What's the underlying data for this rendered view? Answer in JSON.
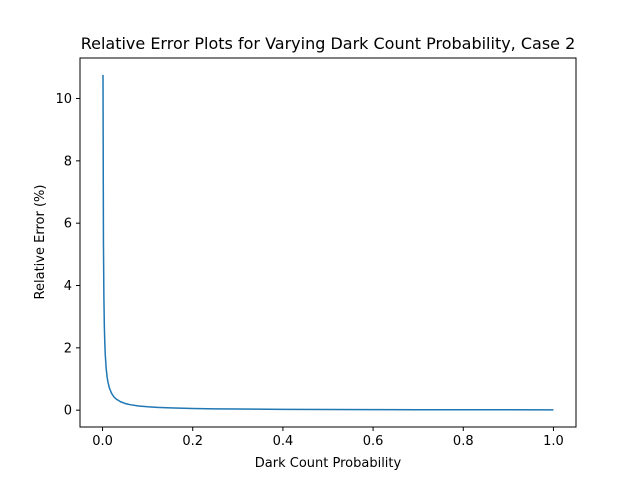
{
  "chart_data": {
    "type": "line",
    "title": "Relative Error Plots for Varying Dark Count Probability, Case 2",
    "xlabel": "Dark Count Probability",
    "ylabel": "Relative Error (%)",
    "xlim": [
      -0.05,
      1.05
    ],
    "ylim": [
      -0.54,
      11.3
    ],
    "x_ticks": [
      0.0,
      0.2,
      0.4,
      0.6,
      0.8,
      1.0
    ],
    "x_tick_labels": [
      "0.0",
      "0.2",
      "0.4",
      "0.6",
      "0.8",
      "1.0"
    ],
    "y_ticks": [
      0,
      2,
      4,
      6,
      8,
      10
    ],
    "y_tick_labels": [
      "0",
      "2",
      "4",
      "6",
      "8",
      "10"
    ],
    "grid": false,
    "legend": "none",
    "series": [
      {
        "color": "#1f77b4",
        "x": [
          0.001,
          0.002,
          0.003,
          0.004,
          0.005,
          0.006,
          0.008,
          0.01,
          0.012,
          0.015,
          0.02,
          0.025,
          0.03,
          0.04,
          0.05,
          0.06,
          0.08,
          0.1,
          0.12,
          0.15,
          0.2,
          0.25,
          0.3,
          0.4,
          0.5,
          0.6,
          0.7,
          0.8,
          0.9,
          1.0
        ],
        "y": [
          10.76,
          5.38,
          3.59,
          2.69,
          2.15,
          1.79,
          1.35,
          1.08,
          0.9,
          0.72,
          0.54,
          0.43,
          0.36,
          0.27,
          0.215,
          0.18,
          0.135,
          0.108,
          0.09,
          0.072,
          0.054,
          0.043,
          0.036,
          0.027,
          0.0215,
          0.018,
          0.0154,
          0.0135,
          0.012,
          0.0108
        ]
      }
    ]
  }
}
